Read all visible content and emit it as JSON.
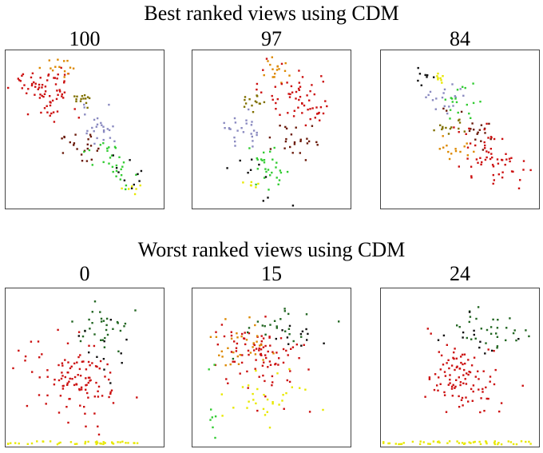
{
  "sections": [
    {
      "title": "Best ranked views using CDM",
      "plots": [
        {
          "label": "100",
          "chart_data": {
            "type": "scatter",
            "pattern": "diagonal",
            "clusters": [
              {
                "color": "#cc1111",
                "cx": 0.25,
                "cy": 0.25,
                "n": 70,
                "sx": 0.08,
                "sy": 0.08,
                "rot": 0.6
              },
              {
                "color": "#dd8800",
                "cx": 0.34,
                "cy": 0.1,
                "n": 14,
                "sx": 0.03,
                "sy": 0.03,
                "rot": 0
              },
              {
                "color": "#807000",
                "cx": 0.48,
                "cy": 0.31,
                "n": 14,
                "sx": 0.02,
                "sy": 0.03,
                "rot": 0
              },
              {
                "color": "#8a8ac0",
                "cx": 0.57,
                "cy": 0.46,
                "n": 25,
                "sx": 0.05,
                "sy": 0.06,
                "rot": 0.3
              },
              {
                "color": "#6a1a0a",
                "cx": 0.45,
                "cy": 0.58,
                "n": 22,
                "sx": 0.06,
                "sy": 0.05,
                "rot": 0.7
              },
              {
                "color": "#33cc33",
                "cx": 0.65,
                "cy": 0.7,
                "n": 28,
                "sx": 0.07,
                "sy": 0.05,
                "rot": 0.8
              },
              {
                "color": "#111111",
                "cx": 0.74,
                "cy": 0.76,
                "n": 10,
                "sx": 0.08,
                "sy": 0.05,
                "rot": 0.8
              },
              {
                "color": "#e8e800",
                "cx": 0.8,
                "cy": 0.87,
                "n": 6,
                "sx": 0.02,
                "sy": 0.02,
                "rot": 0
              }
            ]
          }
        },
        {
          "label": "97",
          "chart_data": {
            "type": "scatter",
            "pattern": "diagonal",
            "clusters": [
              {
                "color": "#dd8800",
                "cx": 0.52,
                "cy": 0.12,
                "n": 16,
                "sx": 0.03,
                "sy": 0.04,
                "rot": 0
              },
              {
                "color": "#cc1111",
                "cx": 0.68,
                "cy": 0.3,
                "n": 60,
                "sx": 0.09,
                "sy": 0.08,
                "rot": 0.3
              },
              {
                "color": "#807000",
                "cx": 0.37,
                "cy": 0.32,
                "n": 14,
                "sx": 0.03,
                "sy": 0.03,
                "rot": 0
              },
              {
                "color": "#8a8ac0",
                "cx": 0.33,
                "cy": 0.52,
                "n": 25,
                "sx": 0.05,
                "sy": 0.06,
                "rot": 0.3
              },
              {
                "color": "#6a1a0a",
                "cx": 0.62,
                "cy": 0.55,
                "n": 24,
                "sx": 0.06,
                "sy": 0.06,
                "rot": 0.8
              },
              {
                "color": "#33cc33",
                "cx": 0.48,
                "cy": 0.73,
                "n": 28,
                "sx": 0.06,
                "sy": 0.06,
                "rot": 0.8
              },
              {
                "color": "#111111",
                "cx": 0.4,
                "cy": 0.78,
                "n": 10,
                "sx": 0.08,
                "sy": 0.05,
                "rot": 0.8
              },
              {
                "color": "#e8e800",
                "cx": 0.37,
                "cy": 0.84,
                "n": 6,
                "sx": 0.02,
                "sy": 0.02,
                "rot": 0
              }
            ]
          }
        },
        {
          "label": "84",
          "chart_data": {
            "type": "scatter",
            "pattern": "diagonal",
            "clusters": [
              {
                "color": "#e8e800",
                "cx": 0.37,
                "cy": 0.17,
                "n": 8,
                "sx": 0.02,
                "sy": 0.03,
                "rot": 0
              },
              {
                "color": "#111111",
                "cx": 0.28,
                "cy": 0.17,
                "n": 8,
                "sx": 0.04,
                "sy": 0.03,
                "rot": 0
              },
              {
                "color": "#8a8ac0",
                "cx": 0.36,
                "cy": 0.3,
                "n": 18,
                "sx": 0.05,
                "sy": 0.04,
                "rot": 0
              },
              {
                "color": "#33cc33",
                "cx": 0.5,
                "cy": 0.32,
                "n": 18,
                "sx": 0.04,
                "sy": 0.06,
                "rot": 0
              },
              {
                "color": "#807000",
                "cx": 0.43,
                "cy": 0.48,
                "n": 14,
                "sx": 0.04,
                "sy": 0.03,
                "rot": 0
              },
              {
                "color": "#6a1a0a",
                "cx": 0.58,
                "cy": 0.5,
                "n": 18,
                "sx": 0.05,
                "sy": 0.04,
                "rot": 0.6
              },
              {
                "color": "#dd8800",
                "cx": 0.45,
                "cy": 0.62,
                "n": 14,
                "sx": 0.04,
                "sy": 0.04,
                "rot": 0
              },
              {
                "color": "#cc1111",
                "cx": 0.68,
                "cy": 0.66,
                "n": 60,
                "sx": 0.09,
                "sy": 0.07,
                "rot": 0.7
              }
            ]
          }
        }
      ]
    },
    {
      "title": "Worst ranked views using CDM",
      "plots": [
        {
          "label": "0",
          "chart_data": {
            "type": "scatter",
            "pattern": "blob",
            "clusters": [
              {
                "color": "#cc1111",
                "cx": 0.45,
                "cy": 0.58,
                "n": 110,
                "sx": 0.1,
                "sy": 0.11,
                "rot": 0.6
              },
              {
                "color": "#226622",
                "cx": 0.6,
                "cy": 0.25,
                "n": 30,
                "sx": 0.07,
                "sy": 0.07,
                "rot": 0.5
              },
              {
                "color": "#111111",
                "cx": 0.55,
                "cy": 0.36,
                "n": 12,
                "sx": 0.07,
                "sy": 0.08,
                "rot": 0.5
              },
              {
                "color": "#e8e800",
                "cx": 0.4,
                "cy": 0.97,
                "n": 40,
                "sx": 0.22,
                "sy": 0.005,
                "rot": 0,
                "spread": "bottom"
              }
            ]
          }
        },
        {
          "label": "15",
          "chart_data": {
            "type": "scatter",
            "pattern": "blob",
            "clusters": [
              {
                "color": "#cc1111",
                "cx": 0.42,
                "cy": 0.42,
                "n": 90,
                "sx": 0.11,
                "sy": 0.1,
                "rot": 0.4
              },
              {
                "color": "#dd8800",
                "cx": 0.32,
                "cy": 0.35,
                "n": 30,
                "sx": 0.09,
                "sy": 0.08,
                "rot": 0
              },
              {
                "color": "#226622",
                "cx": 0.55,
                "cy": 0.22,
                "n": 22,
                "sx": 0.09,
                "sy": 0.07,
                "rot": 0
              },
              {
                "color": "#111111",
                "cx": 0.58,
                "cy": 0.32,
                "n": 12,
                "sx": 0.09,
                "sy": 0.08,
                "rot": 0
              },
              {
                "color": "#e8e800",
                "cx": 0.45,
                "cy": 0.7,
                "n": 30,
                "sx": 0.1,
                "sy": 0.1,
                "rot": 0
              },
              {
                "color": "#33cc33",
                "cx": 0.12,
                "cy": 0.75,
                "n": 8,
                "sx": 0.01,
                "sy": 0.1,
                "rot": 0
              }
            ]
          }
        },
        {
          "label": "24",
          "chart_data": {
            "type": "scatter",
            "pattern": "blob",
            "clusters": [
              {
                "color": "#cc1111",
                "cx": 0.5,
                "cy": 0.57,
                "n": 100,
                "sx": 0.1,
                "sy": 0.1,
                "rot": 0.6
              },
              {
                "color": "#226622",
                "cx": 0.68,
                "cy": 0.25,
                "n": 30,
                "sx": 0.09,
                "sy": 0.07,
                "rot": 0.3
              },
              {
                "color": "#111111",
                "cx": 0.62,
                "cy": 0.33,
                "n": 12,
                "sx": 0.08,
                "sy": 0.07,
                "rot": 0.3
              },
              {
                "color": "#e8e800",
                "cx": 0.45,
                "cy": 0.97,
                "n": 50,
                "sx": 0.25,
                "sy": 0.005,
                "rot": 0,
                "spread": "bottom"
              }
            ]
          }
        }
      ]
    }
  ]
}
